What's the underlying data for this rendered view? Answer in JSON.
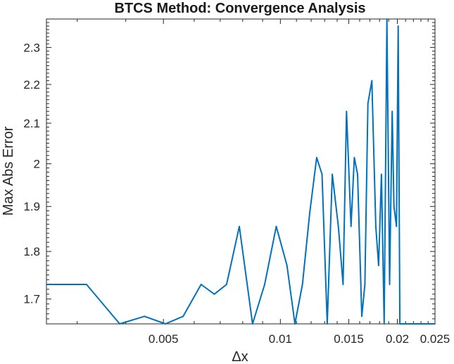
{
  "colors": {
    "series": "#0072BD",
    "axes": "#262626",
    "background": "#ffffff"
  },
  "chart_data": {
    "type": "line",
    "title": "BTCS Method: Convergence Analysis",
    "xlabel": "Δx",
    "ylabel": "Max Abs Error",
    "x_scale": "log",
    "y_scale": "log",
    "xlim": [
      0.0025,
      0.025
    ],
    "ylim": [
      1.65,
      2.38
    ],
    "grid": false,
    "legend": "none",
    "xticks": [
      0.005,
      0.01,
      0.015,
      0.02,
      0.025
    ],
    "xtick_labels": [
      "0.005",
      "0.01",
      "0.015",
      "0.02",
      "0.025"
    ],
    "yticks": [
      1.7,
      1.8,
      1.9,
      2.0,
      2.1,
      2.2,
      2.3
    ],
    "ytick_labels": [
      "1.7",
      "1.8",
      "1.9",
      "2",
      "2.1",
      "2.2",
      "2.3"
    ],
    "series": [
      {
        "x": [
          0.0025,
          0.00317,
          0.00386,
          0.00447,
          0.00506,
          0.00562,
          0.00625,
          0.00676,
          0.00727,
          0.00784,
          0.00848,
          0.00911,
          0.00976,
          0.0104,
          0.0109,
          0.0114,
          0.0119,
          0.0124,
          0.0128,
          0.0132,
          0.0136,
          0.0141,
          0.0145,
          0.0148,
          0.0152,
          0.0155,
          0.0158,
          0.0162,
          0.0165,
          0.0168,
          0.0172,
          0.0176,
          0.0179,
          0.0182,
          0.0185,
          0.0188,
          0.0191,
          0.0194,
          0.0196,
          0.0199,
          0.0201,
          0.0203,
          0.0205,
          0.0207,
          0.0209,
          0.0212,
          0.0215,
          0.0218,
          0.0221,
          0.0223,
          0.0226,
          0.0229,
          0.0232,
          0.0235,
          0.0238,
          0.0242,
          0.0246,
          0.025
        ],
        "y": [
          1.73,
          1.73,
          1.65,
          1.665,
          1.65,
          1.665,
          1.73,
          1.71,
          1.73,
          1.855,
          1.65,
          1.73,
          1.855,
          1.77,
          1.65,
          1.73,
          1.885,
          2.015,
          1.975,
          1.65,
          1.975,
          1.855,
          1.73,
          2.13,
          1.855,
          2.015,
          1.975,
          1.665,
          1.73,
          2.15,
          2.21,
          1.855,
          1.77,
          1.975,
          1.65,
          2.38,
          1.73,
          2.13,
          1.9,
          1.855,
          2.36,
          1.65,
          1.65,
          1.65,
          1.65,
          1.65,
          1.65,
          1.65,
          1.65,
          1.65,
          1.65,
          1.65,
          1.65,
          1.65,
          1.65,
          1.65,
          1.65,
          1.65
        ]
      }
    ]
  }
}
